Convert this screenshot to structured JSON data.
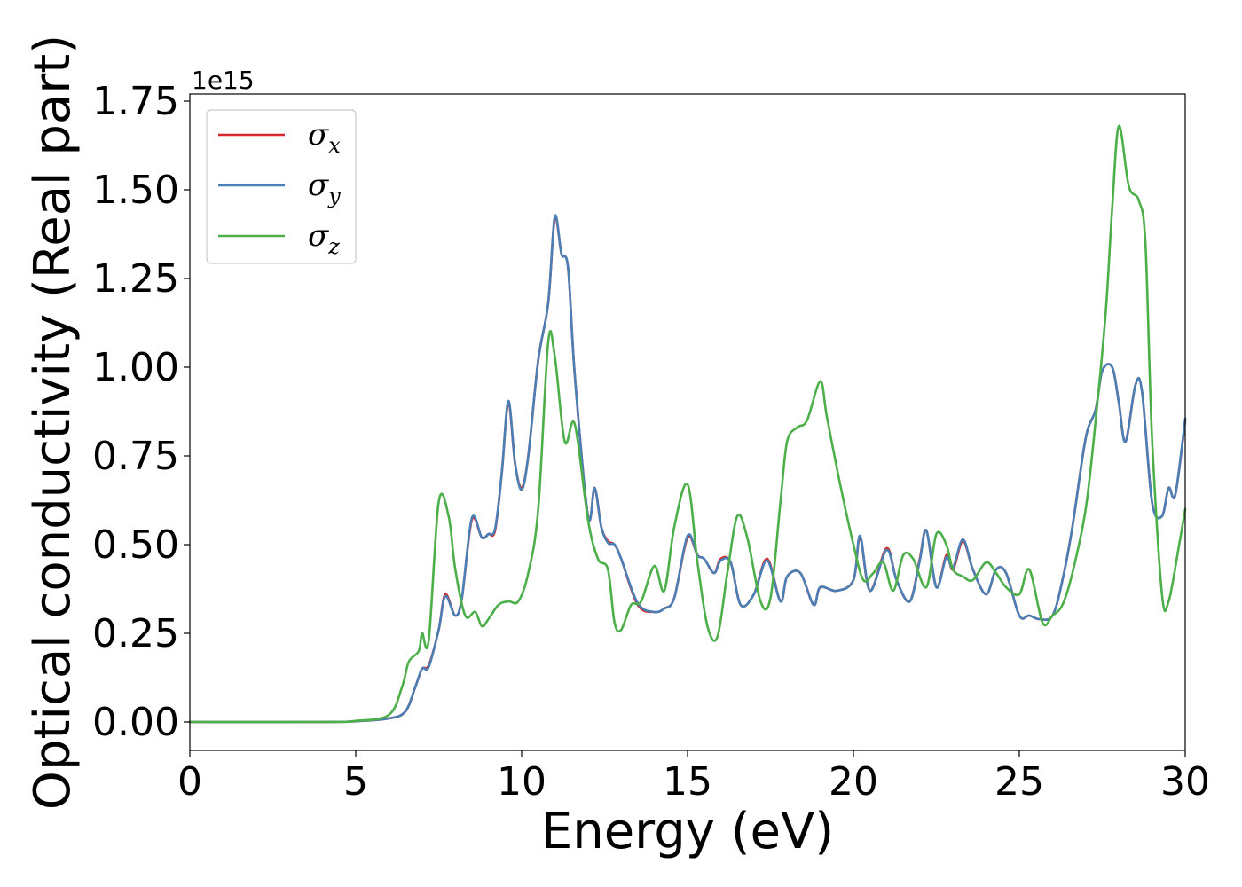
{
  "chart_data": {
    "type": "line",
    "xlabel": "Energy (eV)",
    "ylabel": "Optical conductivity (Real part)",
    "y_offset_text": "1e15",
    "xlim": [
      0,
      30
    ],
    "ylim": [
      -0.08,
      1.77
    ],
    "x_ticks": [
      0,
      5,
      10,
      15,
      20,
      25,
      30
    ],
    "x_tick_labels": [
      "0",
      "5",
      "10",
      "15",
      "20",
      "25",
      "30"
    ],
    "y_ticks": [
      0.0,
      0.25,
      0.5,
      0.75,
      1.0,
      1.25,
      1.5,
      1.75
    ],
    "y_tick_labels": [
      "0.00",
      "0.25",
      "0.50",
      "0.75",
      "1.00",
      "1.25",
      "1.50",
      "1.75"
    ],
    "grid": false,
    "legend_position": "top-left",
    "series": [
      {
        "name": "σx",
        "name_base": "σ",
        "name_sub": "x",
        "color": "#d62728",
        "x": [
          0,
          4,
          5,
          6,
          6.5,
          6.8,
          7.0,
          7.2,
          7.5,
          7.7,
          8.0,
          8.2,
          8.5,
          8.8,
          9.0,
          9.2,
          9.4,
          9.6,
          9.8,
          10.0,
          10.2,
          10.5,
          10.8,
          11.0,
          11.2,
          11.4,
          11.6,
          12.0,
          12.2,
          12.4,
          12.6,
          12.8,
          13.0,
          13.5,
          14.0,
          14.3,
          14.6,
          15.0,
          15.3,
          15.5,
          15.8,
          16.0,
          16.3,
          16.6,
          17.0,
          17.4,
          17.8,
          18.0,
          18.4,
          18.8,
          19.0,
          19.5,
          20.0,
          20.2,
          20.5,
          21.0,
          21.3,
          21.7,
          22.0,
          22.2,
          22.5,
          22.8,
          23.0,
          23.3,
          23.6,
          24.0,
          24.3,
          24.6,
          25.0,
          25.3,
          25.6,
          26.0,
          26.3,
          26.6,
          27.0,
          27.3,
          27.5,
          27.8,
          28.0,
          28.2,
          28.5,
          28.7,
          29.0,
          29.3,
          29.5,
          29.7,
          30.0
        ],
        "values": [
          0,
          0,
          0.002,
          0.01,
          0.03,
          0.1,
          0.15,
          0.16,
          0.26,
          0.36,
          0.3,
          0.35,
          0.57,
          0.52,
          0.53,
          0.54,
          0.7,
          0.9,
          0.73,
          0.66,
          0.75,
          1.02,
          1.18,
          1.42,
          1.32,
          1.28,
          0.98,
          0.58,
          0.66,
          0.55,
          0.51,
          0.5,
          0.46,
          0.33,
          0.31,
          0.32,
          0.35,
          0.52,
          0.47,
          0.46,
          0.42,
          0.46,
          0.45,
          0.33,
          0.36,
          0.46,
          0.34,
          0.41,
          0.42,
          0.33,
          0.38,
          0.37,
          0.4,
          0.52,
          0.37,
          0.49,
          0.4,
          0.34,
          0.46,
          0.54,
          0.38,
          0.47,
          0.43,
          0.51,
          0.43,
          0.36,
          0.43,
          0.42,
          0.3,
          0.3,
          0.29,
          0.3,
          0.4,
          0.55,
          0.8,
          0.88,
          0.99,
          1.0,
          0.9,
          0.79,
          0.95,
          0.93,
          0.62,
          0.58,
          0.66,
          0.64,
          0.85
        ]
      },
      {
        "name": "σy",
        "name_base": "σ",
        "name_sub": "y",
        "color": "#4a7fb5",
        "x": [
          0,
          4,
          5,
          6,
          6.5,
          6.8,
          7.0,
          7.2,
          7.5,
          7.7,
          8.0,
          8.2,
          8.5,
          8.8,
          9.0,
          9.2,
          9.4,
          9.6,
          9.8,
          10.0,
          10.2,
          10.5,
          10.8,
          11.0,
          11.2,
          11.4,
          11.6,
          12.0,
          12.2,
          12.4,
          12.6,
          12.8,
          13.0,
          13.5,
          14.0,
          14.3,
          14.6,
          15.0,
          15.3,
          15.5,
          15.8,
          16.0,
          16.3,
          16.6,
          17.0,
          17.4,
          17.8,
          18.0,
          18.4,
          18.8,
          19.0,
          19.5,
          20.0,
          20.2,
          20.5,
          21.0,
          21.3,
          21.7,
          22.0,
          22.2,
          22.5,
          22.8,
          23.0,
          23.3,
          23.6,
          24.0,
          24.3,
          24.6,
          25.0,
          25.3,
          25.6,
          26.0,
          26.3,
          26.6,
          27.0,
          27.3,
          27.5,
          27.8,
          28.0,
          28.2,
          28.5,
          28.7,
          29.0,
          29.3,
          29.5,
          29.7,
          30.0
        ],
        "values": [
          0,
          0,
          0.002,
          0.01,
          0.03,
          0.1,
          0.15,
          0.155,
          0.26,
          0.355,
          0.3,
          0.35,
          0.575,
          0.52,
          0.53,
          0.545,
          0.7,
          0.905,
          0.73,
          0.655,
          0.75,
          1.02,
          1.18,
          1.425,
          1.32,
          1.28,
          0.98,
          0.58,
          0.66,
          0.55,
          0.505,
          0.5,
          0.46,
          0.335,
          0.31,
          0.32,
          0.35,
          0.525,
          0.47,
          0.46,
          0.42,
          0.455,
          0.45,
          0.33,
          0.36,
          0.455,
          0.34,
          0.41,
          0.42,
          0.33,
          0.38,
          0.37,
          0.4,
          0.525,
          0.37,
          0.485,
          0.4,
          0.34,
          0.455,
          0.54,
          0.38,
          0.465,
          0.435,
          0.515,
          0.43,
          0.36,
          0.43,
          0.42,
          0.3,
          0.3,
          0.29,
          0.3,
          0.4,
          0.55,
          0.8,
          0.88,
          0.99,
          1.0,
          0.9,
          0.79,
          0.95,
          0.93,
          0.62,
          0.58,
          0.66,
          0.64,
          0.855
        ]
      },
      {
        "name": "σz",
        "name_base": "σ",
        "name_sub": "z",
        "color": "#4daf4a",
        "x": [
          0,
          4,
          5,
          6,
          6.4,
          6.6,
          6.9,
          7.0,
          7.2,
          7.5,
          7.8,
          8.0,
          8.3,
          8.6,
          8.8,
          9.0,
          9.3,
          9.6,
          9.9,
          10.2,
          10.5,
          10.8,
          11.0,
          11.3,
          11.6,
          12.0,
          12.3,
          12.6,
          12.8,
          13.0,
          13.3,
          13.6,
          14.0,
          14.3,
          14.6,
          15.0,
          15.3,
          15.6,
          15.9,
          16.2,
          16.5,
          16.8,
          17.2,
          17.5,
          17.8,
          18.0,
          18.3,
          18.6,
          19.0,
          19.2,
          19.6,
          20.0,
          20.3,
          20.6,
          20.9,
          21.2,
          21.5,
          21.8,
          22.2,
          22.5,
          22.8,
          23.0,
          23.3,
          23.6,
          24.0,
          24.3,
          24.6,
          25.0,
          25.3,
          25.7,
          26.0,
          26.3,
          26.6,
          27.0,
          27.3,
          27.6,
          27.8,
          28.0,
          28.3,
          28.6,
          28.8,
          29.0,
          29.3,
          29.5,
          29.8,
          30.0
        ],
        "values": [
          0,
          0,
          0.003,
          0.02,
          0.1,
          0.17,
          0.2,
          0.25,
          0.23,
          0.62,
          0.58,
          0.43,
          0.3,
          0.31,
          0.27,
          0.29,
          0.33,
          0.34,
          0.34,
          0.42,
          0.6,
          1.07,
          1.03,
          0.79,
          0.84,
          0.57,
          0.46,
          0.43,
          0.28,
          0.26,
          0.33,
          0.34,
          0.44,
          0.37,
          0.55,
          0.67,
          0.45,
          0.27,
          0.24,
          0.42,
          0.58,
          0.52,
          0.34,
          0.35,
          0.62,
          0.79,
          0.83,
          0.85,
          0.96,
          0.86,
          0.67,
          0.5,
          0.4,
          0.42,
          0.45,
          0.37,
          0.47,
          0.46,
          0.38,
          0.53,
          0.5,
          0.43,
          0.41,
          0.4,
          0.45,
          0.42,
          0.38,
          0.36,
          0.43,
          0.28,
          0.3,
          0.33,
          0.42,
          0.6,
          0.85,
          1.15,
          1.45,
          1.68,
          1.51,
          1.47,
          1.35,
          0.8,
          0.36,
          0.34,
          0.49,
          0.6
        ]
      }
    ]
  }
}
